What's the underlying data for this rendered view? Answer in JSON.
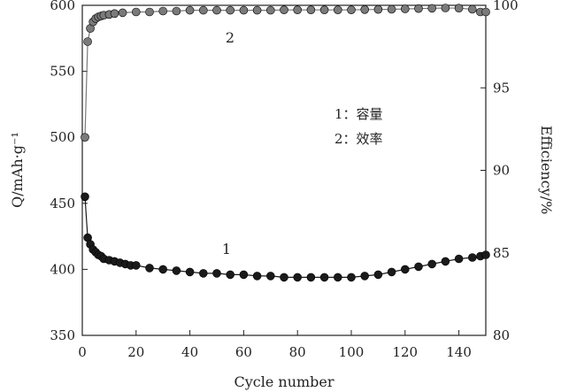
{
  "chart_data": {
    "type": "scatter",
    "xlabel": "Cycle number",
    "ylabel": "Q/mAh·g⁻¹",
    "y2label": "Efficiency/%",
    "xlim": [
      0,
      150
    ],
    "ylim": [
      350,
      600
    ],
    "y2lim": [
      80,
      100
    ],
    "xticks": [
      "0",
      "20",
      "40",
      "60",
      "80",
      "100",
      "120",
      "140"
    ],
    "yticks": [
      "350",
      "400",
      "450",
      "500",
      "550",
      "600"
    ],
    "y2ticks": [
      "80",
      "85",
      "90",
      "95",
      "100"
    ],
    "grid": false,
    "legend_lines": [
      "1：容量",
      "2：效率"
    ],
    "series": [
      {
        "label": "1",
        "axis": "left",
        "color": "#1a1a1a",
        "points": [
          [
            1,
            455
          ],
          [
            2,
            424
          ],
          [
            3,
            419
          ],
          [
            4,
            415
          ],
          [
            5,
            413
          ],
          [
            6,
            411
          ],
          [
            7,
            410
          ],
          [
            8,
            408
          ],
          [
            10,
            407
          ],
          [
            12,
            406
          ],
          [
            14,
            405
          ],
          [
            16,
            404
          ],
          [
            18,
            403
          ],
          [
            20,
            403
          ],
          [
            25,
            401
          ],
          [
            30,
            400
          ],
          [
            35,
            399
          ],
          [
            40,
            398
          ],
          [
            45,
            397
          ],
          [
            50,
            397
          ],
          [
            55,
            396
          ],
          [
            60,
            396
          ],
          [
            65,
            395
          ],
          [
            70,
            395
          ],
          [
            75,
            394
          ],
          [
            80,
            394
          ],
          [
            85,
            394
          ],
          [
            90,
            394
          ],
          [
            95,
            394
          ],
          [
            100,
            394
          ],
          [
            105,
            395
          ],
          [
            110,
            396
          ],
          [
            115,
            398
          ],
          [
            120,
            400
          ],
          [
            125,
            402
          ],
          [
            130,
            404
          ],
          [
            135,
            406
          ],
          [
            140,
            408
          ],
          [
            145,
            409
          ],
          [
            148,
            410
          ],
          [
            150,
            411
          ]
        ]
      },
      {
        "label": "2",
        "axis": "right",
        "color": "#7a7a7a",
        "points": [
          [
            1,
            92
          ],
          [
            2,
            97.8
          ],
          [
            3,
            98.6
          ],
          [
            4,
            99.0
          ],
          [
            5,
            99.2
          ],
          [
            6,
            99.3
          ],
          [
            7,
            99.35
          ],
          [
            8,
            99.4
          ],
          [
            10,
            99.45
          ],
          [
            12,
            99.5
          ],
          [
            15,
            99.55
          ],
          [
            20,
            99.6
          ],
          [
            25,
            99.6
          ],
          [
            30,
            99.65
          ],
          [
            35,
            99.65
          ],
          [
            40,
            99.7
          ],
          [
            45,
            99.7
          ],
          [
            50,
            99.7
          ],
          [
            55,
            99.7
          ],
          [
            60,
            99.7
          ],
          [
            65,
            99.7
          ],
          [
            70,
            99.7
          ],
          [
            75,
            99.72
          ],
          [
            80,
            99.72
          ],
          [
            85,
            99.72
          ],
          [
            90,
            99.72
          ],
          [
            95,
            99.72
          ],
          [
            100,
            99.72
          ],
          [
            105,
            99.74
          ],
          [
            110,
            99.75
          ],
          [
            115,
            99.76
          ],
          [
            120,
            99.78
          ],
          [
            125,
            99.8
          ],
          [
            130,
            99.82
          ],
          [
            135,
            99.84
          ],
          [
            140,
            99.83
          ],
          [
            145,
            99.76
          ],
          [
            148,
            99.6
          ],
          [
            150,
            99.6
          ]
        ]
      }
    ]
  }
}
